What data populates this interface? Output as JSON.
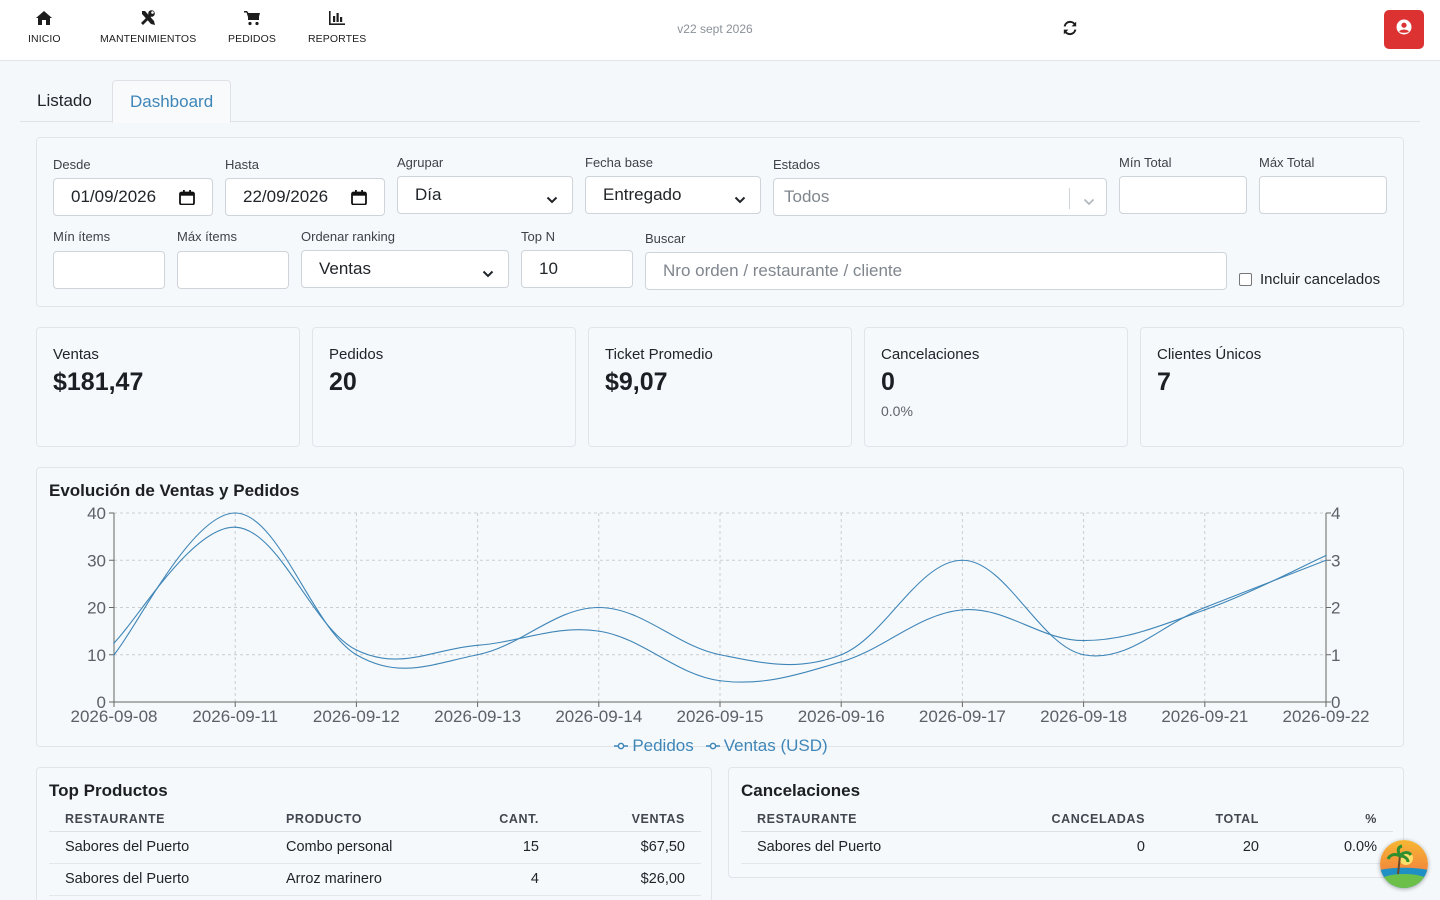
{
  "nav": {
    "items": [
      {
        "label": "INICIO",
        "icon": "home-icon"
      },
      {
        "label": "MANTENIMIENTOS",
        "icon": "tools-icon"
      },
      {
        "label": "PEDIDOS",
        "icon": "cart-icon"
      },
      {
        "label": "REPORTES",
        "icon": "bar-chart-icon"
      }
    ],
    "version": "v22 sept 2026",
    "accent": "#dc3232"
  },
  "tabs": {
    "listado": "Listado",
    "dashboard": "Dashboard",
    "active": "Dashboard"
  },
  "filters": {
    "desde_label": "Desde",
    "desde_value": "01/09/2026",
    "hasta_label": "Hasta",
    "hasta_value": "22/09/2026",
    "agrupar_label": "Agrupar",
    "agrupar_value": "Día",
    "fecha_base_label": "Fecha base",
    "fecha_base_value": "Entregado",
    "estados_label": "Estados",
    "estados_placeholder": "Todos",
    "min_total_label": "Mín Total",
    "max_total_label": "Máx Total",
    "min_items_label": "Mín ítems",
    "max_items_label": "Máx ítems",
    "ordenar_label": "Ordenar ranking",
    "ordenar_value": "Ventas",
    "topn_label": "Top N",
    "topn_value": "10",
    "buscar_label": "Buscar",
    "buscar_placeholder": "Nro orden / restaurante / cliente",
    "incluir_cancelados": "Incluir cancelados"
  },
  "kpis": [
    {
      "title": "Ventas",
      "value": "$181,47",
      "sub": ""
    },
    {
      "title": "Pedidos",
      "value": "20",
      "sub": ""
    },
    {
      "title": "Ticket Promedio",
      "value": "$9,07",
      "sub": ""
    },
    {
      "title": "Cancelaciones",
      "value": "0",
      "sub": "0.0%"
    },
    {
      "title": "Clientes Únicos",
      "value": "7",
      "sub": ""
    }
  ],
  "chart_title": "Evolución de Ventas y Pedidos",
  "chart_data": {
    "type": "line",
    "title": "Evolución de Ventas y Pedidos",
    "categories": [
      "2026-09-08",
      "2026-09-11",
      "2026-09-12",
      "2026-09-13",
      "2026-09-14",
      "2026-09-15",
      "2026-09-16",
      "2026-09-17",
      "2026-09-18",
      "2026-09-21",
      "2026-09-22"
    ],
    "series": [
      {
        "name": "Pedidos",
        "axis": "right",
        "values": [
          1,
          4,
          1,
          1,
          2,
          1,
          1,
          3,
          1,
          2,
          3
        ]
      },
      {
        "name": "Ventas (USD)",
        "axis": "left",
        "values": [
          12.5,
          37,
          11,
          12,
          15,
          4.5,
          8.5,
          19.5,
          13,
          19.5,
          31
        ]
      }
    ],
    "yleft_ticks": [
      "0",
      "10",
      "20",
      "30",
      "40"
    ],
    "yright_ticks": [
      "0",
      "1",
      "2",
      "3",
      "4"
    ],
    "ylim_left": [
      0,
      40
    ],
    "ylim_right": [
      0,
      4
    ],
    "grid": true,
    "legend": "bottom",
    "color": "#3f86b8"
  },
  "top_productos": {
    "title": "Top Productos",
    "headers": [
      "RESTAURANTE",
      "PRODUCTO",
      "CANT.",
      "VENTAS"
    ],
    "rows": [
      [
        "Sabores del Puerto",
        "Combo personal",
        "15",
        "$67,50"
      ],
      [
        "Sabores del Puerto",
        "Arroz marinero",
        "4",
        "$26,00"
      ]
    ]
  },
  "cancelaciones": {
    "title": "Cancelaciones",
    "headers": [
      "RESTAURANTE",
      "CANCELADAS",
      "TOTAL",
      "%"
    ],
    "rows": [
      [
        "Sabores del Puerto",
        "0",
        "20",
        "0.0%"
      ]
    ]
  }
}
